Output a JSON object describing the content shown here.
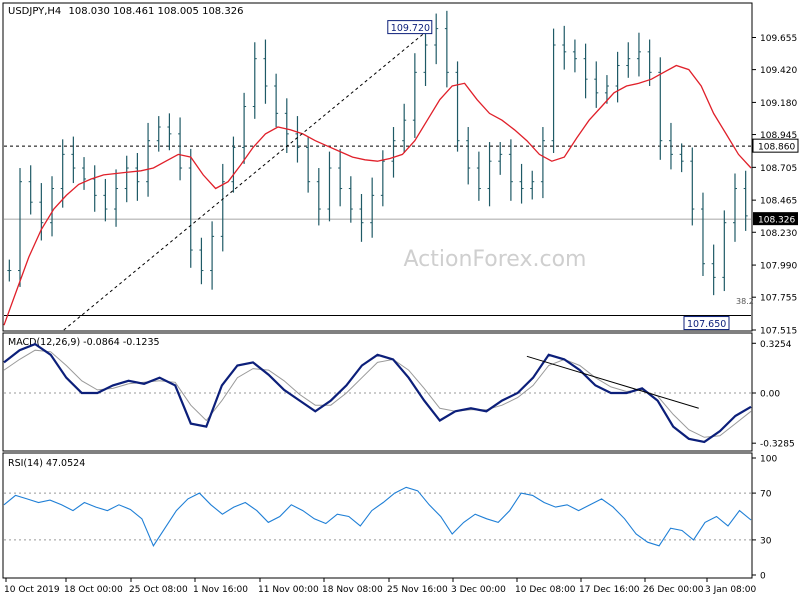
{
  "header": {
    "symbol": "USDJPY,H4",
    "ohlc": "108.030 108.461 108.005 108.326"
  },
  "watermark": "ActionForex.com",
  "colors": {
    "bars": "#1f5a66",
    "ma": "#e0202a",
    "macd": "#0c1f7a",
    "signal": "#9a9a9a",
    "rsi": "#1f7fd6",
    "grid": "#000000",
    "label_box": "#0c1f7a"
  },
  "chart_data": [
    {
      "type": "ohlc",
      "title": "USDJPY,H4",
      "x_labels": [
        "10 Oct 2019",
        "18 Oct 00:00",
        "25 Oct 08:00",
        "1 Nov 16:00",
        "11 Nov 00:00",
        "18 Nov 08:00",
        "25 Nov 16:00",
        "3 Dec 00:00",
        "10 Dec 08:00",
        "17 Dec 16:00",
        "26 Dec 00:00",
        "3 Jan 08:00"
      ],
      "y_ticks": [
        107.515,
        107.755,
        107.99,
        108.23,
        108.465,
        108.705,
        108.945,
        109.18,
        109.42,
        109.655
      ],
      "ylim": [
        107.515,
        109.9
      ],
      "price_marker": {
        "label": "108.326",
        "value": 108.326
      },
      "resistance_marker": {
        "label": "108.860",
        "value": 108.86
      },
      "annotations": [
        {
          "label": "109.720",
          "value": 109.72
        },
        {
          "label": "107.650",
          "value": 107.65
        },
        {
          "label": "38.2",
          "value": 107.72
        }
      ],
      "trendline": {
        "from": [
          0.08,
          107.515
        ],
        "to": [
          0.57,
          109.72
        ]
      },
      "close_series": [
        107.95,
        108.6,
        108.45,
        108.3,
        108.55,
        108.8,
        108.7,
        108.62,
        108.5,
        108.4,
        108.55,
        108.7,
        108.6,
        108.9,
        109.0,
        108.95,
        108.7,
        108.1,
        107.95,
        108.2,
        108.6,
        108.85,
        109.15,
        109.5,
        109.3,
        109.1,
        108.95,
        108.85,
        108.6,
        108.4,
        108.7,
        108.55,
        108.4,
        108.3,
        108.5,
        108.75,
        108.9,
        109.05,
        109.4,
        109.6,
        109.72,
        109.4,
        108.9,
        108.7,
        108.55,
        108.75,
        108.8,
        108.6,
        108.55,
        108.6,
        108.9,
        109.6,
        109.55,
        109.5,
        109.35,
        109.25,
        109.3,
        109.45,
        109.5,
        109.55,
        109.4,
        108.9,
        108.8,
        108.75,
        108.4,
        108.0,
        107.9,
        108.3,
        108.55,
        108.35
      ],
      "ma_series": [
        107.55,
        107.8,
        108.05,
        108.25,
        108.4,
        108.5,
        108.58,
        108.62,
        108.65,
        108.66,
        108.67,
        108.68,
        108.7,
        108.75,
        108.8,
        108.78,
        108.65,
        108.55,
        108.6,
        108.72,
        108.85,
        108.95,
        109.0,
        108.98,
        108.95,
        108.9,
        108.86,
        108.82,
        108.78,
        108.76,
        108.75,
        108.77,
        108.8,
        108.9,
        109.05,
        109.2,
        109.3,
        109.32,
        109.2,
        109.1,
        109.05,
        108.98,
        108.9,
        108.8,
        108.75,
        108.78,
        108.92,
        109.05,
        109.15,
        109.25,
        109.3,
        109.32,
        109.35,
        109.4,
        109.45,
        109.42,
        109.3,
        109.1,
        108.95,
        108.8,
        108.7
      ],
      "xlabel": "",
      "ylabel": ""
    },
    {
      "type": "line",
      "title": "MACD(12,26,9) -0.0864 -0.1235",
      "y_ticks": [
        0.3254,
        0.0,
        -0.3285
      ],
      "ylim": [
        -0.36,
        0.36
      ],
      "series": [
        {
          "values": [
            0.2,
            0.28,
            0.32,
            0.25,
            0.1,
            0.0,
            0.0,
            0.05,
            0.08,
            0.06,
            0.1,
            0.05,
            -0.2,
            -0.22,
            0.05,
            0.18,
            0.2,
            0.12,
            0.02,
            -0.05,
            -0.12,
            -0.05,
            0.05,
            0.18,
            0.25,
            0.22,
            0.1,
            -0.05,
            -0.18,
            -0.12,
            -0.1,
            -0.12,
            -0.05,
            0.0,
            0.1,
            0.25,
            0.22,
            0.15,
            0.05,
            0.0,
            0.0,
            0.03,
            -0.05,
            -0.22,
            -0.3,
            -0.32,
            -0.25,
            -0.15,
            -0.09
          ]
        },
        {
          "values": [
            0.15,
            0.22,
            0.28,
            0.27,
            0.18,
            0.08,
            0.02,
            0.03,
            0.06,
            0.07,
            0.08,
            0.07,
            -0.08,
            -0.18,
            -0.05,
            0.1,
            0.16,
            0.15,
            0.08,
            -0.01,
            -0.08,
            -0.08,
            0.0,
            0.1,
            0.2,
            0.22,
            0.15,
            0.03,
            -0.1,
            -0.12,
            -0.11,
            -0.11,
            -0.08,
            -0.03,
            0.05,
            0.18,
            0.22,
            0.18,
            0.1,
            0.04,
            0.01,
            0.02,
            -0.02,
            -0.14,
            -0.24,
            -0.29,
            -0.28,
            -0.2,
            -0.12
          ]
        }
      ],
      "trendline": {
        "from": [
          0.7,
          0.24
        ],
        "to": [
          0.93,
          -0.1
        ]
      },
      "xlabel": "",
      "ylabel": ""
    },
    {
      "type": "line",
      "title": "RSI(14) 47.0524",
      "y_ticks": [
        100,
        70,
        30,
        0
      ],
      "ylim": [
        0,
        100
      ],
      "series": [
        {
          "values": [
            60,
            68,
            65,
            62,
            64,
            60,
            55,
            62,
            58,
            55,
            60,
            56,
            48,
            25,
            40,
            55,
            65,
            70,
            60,
            52,
            58,
            62,
            55,
            45,
            50,
            60,
            55,
            48,
            44,
            52,
            50,
            42,
            55,
            62,
            70,
            75,
            72,
            60,
            50,
            35,
            45,
            52,
            48,
            45,
            55,
            70,
            68,
            62,
            58,
            60,
            55,
            60,
            65,
            58,
            48,
            35,
            28,
            25,
            40,
            38,
            30,
            45,
            50,
            42,
            55,
            47
          ]
        }
      ],
      "xlabel": "",
      "ylabel": ""
    }
  ]
}
